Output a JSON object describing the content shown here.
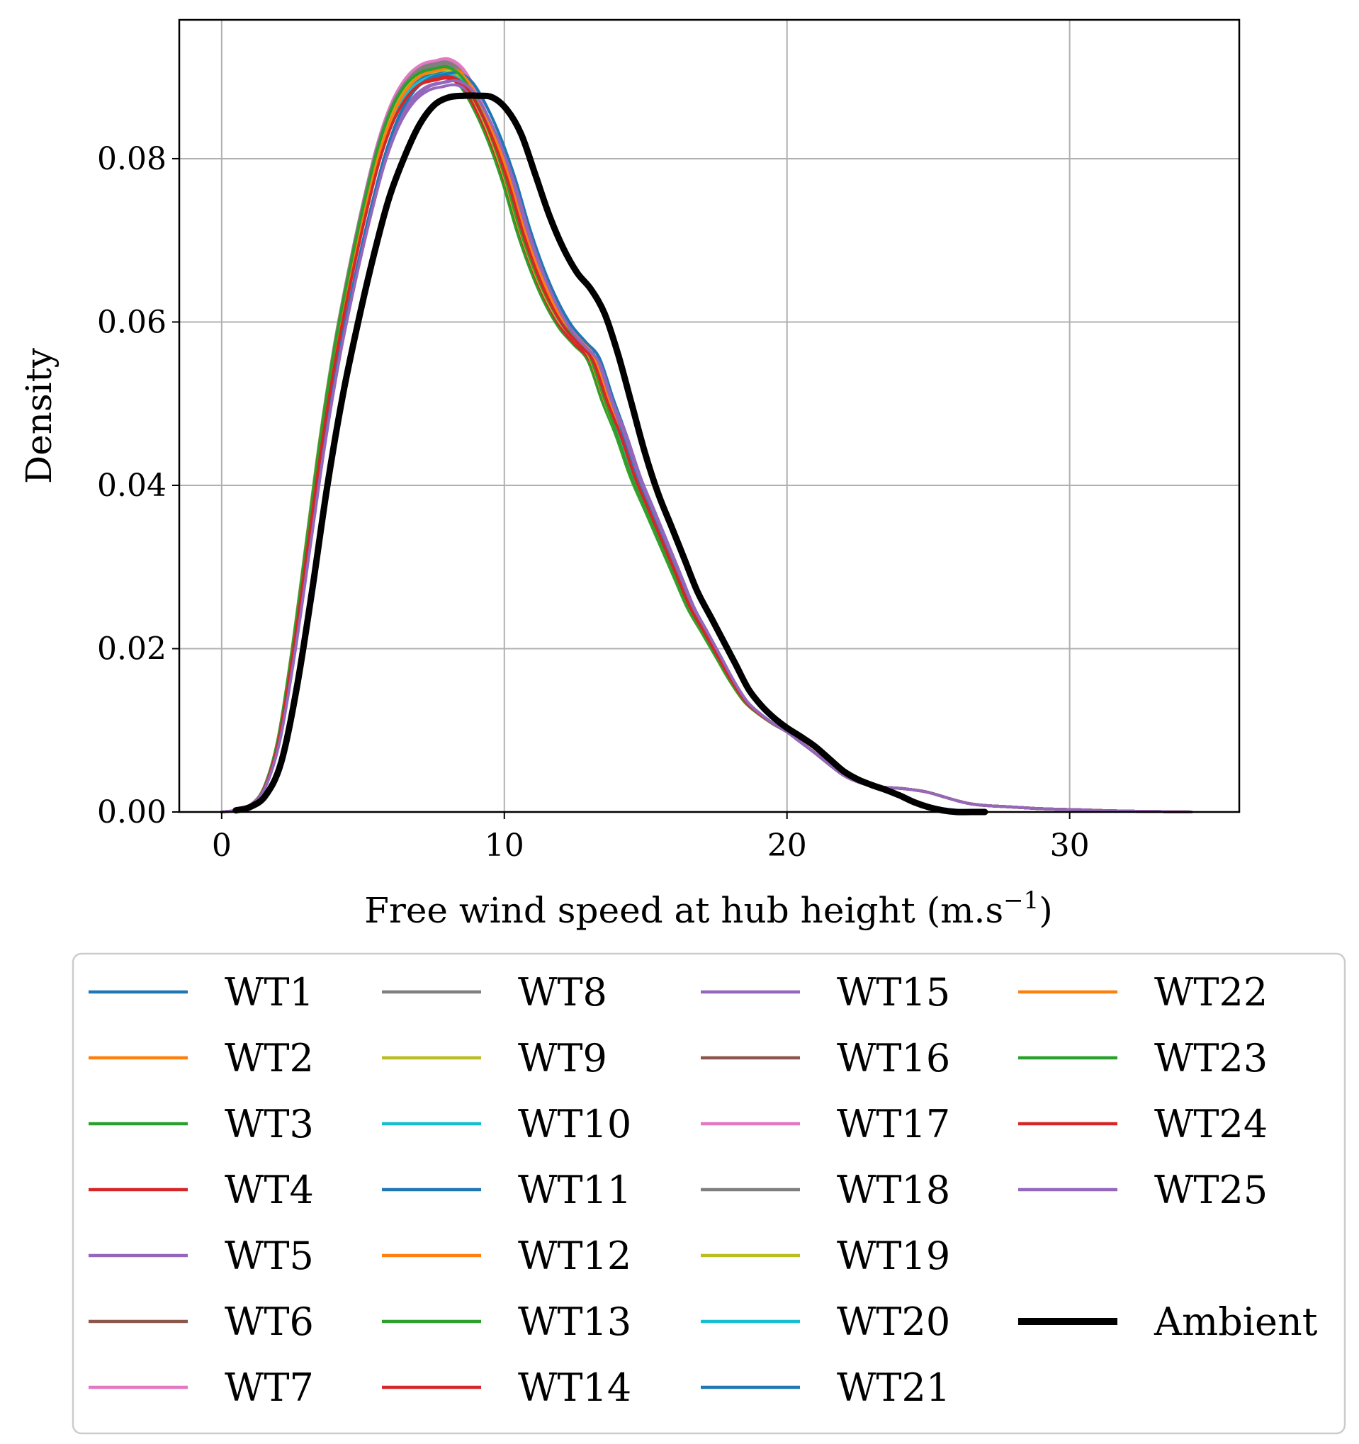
{
  "chart_data": {
    "type": "line",
    "title": "",
    "xlabel": "Free wind speed at hub height (m.s",
    "xlabel_sup": "−1",
    "xlabel_end": ")",
    "ylabel": "Density",
    "xlim": [
      -1.5,
      36
    ],
    "ylim": [
      0,
      0.097
    ],
    "xticks": [
      0,
      10,
      20,
      30
    ],
    "xtick_labels": [
      "0",
      "10",
      "20",
      "30"
    ],
    "yticks": [
      0,
      0.02,
      0.04,
      0.06,
      0.08
    ],
    "ytick_labels": [
      "0.00",
      "0.02",
      "0.04",
      "0.06",
      "0.08"
    ],
    "grid": true,
    "legend_position": "below",
    "legend_columns": 4,
    "series": [
      {
        "name": "WT1",
        "color": "#1f77b4",
        "peak_x": 8.2,
        "peak_y": 0.091,
        "shift": 0.2,
        "kind": "tail"
      },
      {
        "name": "WT2",
        "color": "#ff7f0e",
        "peak_x": 8.1,
        "peak_y": 0.0915,
        "shift": 0.1,
        "kind": "tail"
      },
      {
        "name": "WT3",
        "color": "#2ca02c",
        "peak_x": 7.9,
        "peak_y": 0.0905,
        "shift": 0.0,
        "kind": "tail"
      },
      {
        "name": "WT4",
        "color": "#d62728",
        "peak_x": 8.0,
        "peak_y": 0.09,
        "shift": 0.05,
        "kind": "tail"
      },
      {
        "name": "WT5",
        "color": "#9467bd",
        "peak_x": 8.4,
        "peak_y": 0.0895,
        "shift": 0.3,
        "kind": "tail"
      },
      {
        "name": "WT6",
        "color": "#8c564b",
        "peak_x": 8.1,
        "peak_y": 0.0915,
        "shift": 0.1,
        "kind": "tail"
      },
      {
        "name": "WT7",
        "color": "#e377c2",
        "peak_x": 8.0,
        "peak_y": 0.092,
        "shift": 0.0,
        "kind": "tail"
      },
      {
        "name": "WT8",
        "color": "#7f7f7f",
        "peak_x": 7.9,
        "peak_y": 0.0918,
        "shift": 0.0,
        "kind": "tail"
      },
      {
        "name": "WT9",
        "color": "#bcbd22",
        "peak_x": 7.8,
        "peak_y": 0.091,
        "shift": -0.05,
        "kind": "tail"
      },
      {
        "name": "WT10",
        "color": "#17becf",
        "peak_x": 8.0,
        "peak_y": 0.0905,
        "shift": 0.05,
        "kind": "tail"
      },
      {
        "name": "WT11",
        "color": "#1f77b4",
        "peak_x": 8.3,
        "peak_y": 0.0908,
        "shift": 0.2,
        "kind": "tail"
      },
      {
        "name": "WT12",
        "color": "#ff7f0e",
        "peak_x": 8.2,
        "peak_y": 0.0912,
        "shift": 0.15,
        "kind": "tail"
      },
      {
        "name": "WT13",
        "color": "#2ca02c",
        "peak_x": 7.8,
        "peak_y": 0.09,
        "shift": -0.05,
        "kind": "tail"
      },
      {
        "name": "WT14",
        "color": "#d62728",
        "peak_x": 8.0,
        "peak_y": 0.0898,
        "shift": 0.05,
        "kind": "tail"
      },
      {
        "name": "WT15",
        "color": "#9467bd",
        "peak_x": 8.6,
        "peak_y": 0.089,
        "shift": 0.35,
        "kind": "tail"
      },
      {
        "name": "WT16",
        "color": "#8c564b",
        "peak_x": 8.1,
        "peak_y": 0.091,
        "shift": 0.1,
        "kind": "tail"
      },
      {
        "name": "WT17",
        "color": "#e377c2",
        "peak_x": 8.1,
        "peak_y": 0.0922,
        "shift": 0.05,
        "kind": "tail"
      },
      {
        "name": "WT18",
        "color": "#7f7f7f",
        "peak_x": 8.0,
        "peak_y": 0.0915,
        "shift": 0.0,
        "kind": "tail"
      },
      {
        "name": "WT19",
        "color": "#bcbd22",
        "peak_x": 7.9,
        "peak_y": 0.0908,
        "shift": 0.0,
        "kind": "tail"
      },
      {
        "name": "WT20",
        "color": "#17becf",
        "peak_x": 8.2,
        "peak_y": 0.0903,
        "shift": 0.1,
        "kind": "tail"
      },
      {
        "name": "WT21",
        "color": "#1f77b4",
        "peak_x": 9.0,
        "peak_y": 0.0905,
        "shift": 0.4,
        "kind": "tail"
      },
      {
        "name": "WT22",
        "color": "#ff7f0e",
        "peak_x": 8.2,
        "peak_y": 0.091,
        "shift": 0.15,
        "kind": "tail"
      },
      {
        "name": "WT23",
        "color": "#2ca02c",
        "peak_x": 7.9,
        "peak_y": 0.0912,
        "shift": 0.0,
        "kind": "tail"
      },
      {
        "name": "WT24",
        "color": "#d62728",
        "peak_x": 8.3,
        "peak_y": 0.09,
        "shift": 0.15,
        "kind": "tail"
      },
      {
        "name": "WT25",
        "color": "#9467bd",
        "peak_x": 8.7,
        "peak_y": 0.0895,
        "shift": 0.4,
        "kind": "tail"
      },
      {
        "name": "Ambient",
        "color": "#000000",
        "peak_x": 9.2,
        "peak_y": 0.0877,
        "shift": 0.6,
        "kind": "ambient"
      }
    ],
    "curve_template_x": [
      0,
      0.5,
      1.0,
      1.5,
      2.0,
      2.5,
      3.0,
      3.5,
      4.0,
      4.5,
      5.0,
      5.5,
      6.0,
      6.5,
      7.0,
      7.5,
      8.0,
      8.5,
      9.0,
      9.5,
      10.0,
      10.5,
      11.0,
      11.5,
      12.0,
      12.5,
      13.0,
      13.5,
      14.0,
      14.5,
      15.0,
      15.5,
      16.0,
      16.5,
      17.0,
      17.5,
      18.0,
      18.5,
      19.0,
      19.5,
      20.0,
      20.5,
      21.0,
      21.5,
      22.0,
      22.5,
      23.0,
      23.5,
      24.0,
      24.5,
      25.0,
      25.5,
      26.0,
      26.5,
      27.0,
      28.0,
      29.0,
      30.0,
      31.0,
      32.0,
      33.0,
      34.3
    ],
    "curve_template_tail_y": [
      0.0,
      0.0002,
      0.0008,
      0.003,
      0.009,
      0.02,
      0.033,
      0.046,
      0.057,
      0.066,
      0.074,
      0.081,
      0.086,
      0.089,
      0.0905,
      0.091,
      0.0912,
      0.09,
      0.087,
      0.083,
      0.078,
      0.072,
      0.067,
      0.063,
      0.06,
      0.058,
      0.056,
      0.051,
      0.046,
      0.041,
      0.037,
      0.033,
      0.029,
      0.025,
      0.022,
      0.019,
      0.016,
      0.0135,
      0.012,
      0.0108,
      0.0098,
      0.0085,
      0.0072,
      0.0058,
      0.0045,
      0.0037,
      0.0032,
      0.003,
      0.0029,
      0.0027,
      0.0024,
      0.0019,
      0.0014,
      0.001,
      0.0008,
      0.0006,
      0.0004,
      0.0003,
      0.0002,
      0.0001,
      5e-05,
      0.0
    ],
    "curve_template_ambient_y": [
      0.0,
      0.0002,
      0.0006,
      0.002,
      0.006,
      0.015,
      0.027,
      0.04,
      0.051,
      0.06,
      0.068,
      0.075,
      0.08,
      0.084,
      0.0865,
      0.0875,
      0.0877,
      0.0877,
      0.0875,
      0.086,
      0.083,
      0.078,
      0.073,
      0.069,
      0.066,
      0.064,
      0.061,
      0.056,
      0.05,
      0.044,
      0.039,
      0.035,
      0.031,
      0.027,
      0.024,
      0.021,
      0.018,
      0.015,
      0.013,
      0.0115,
      0.0103,
      0.0092,
      0.008,
      0.0065,
      0.005,
      0.004,
      0.0033,
      0.0027,
      0.002,
      0.0012,
      0.0006,
      0.0002,
      0.0,
      0.0,
      0.0,
      0.0,
      0.0,
      0.0,
      0.0,
      0.0,
      0.0,
      0.0
    ]
  }
}
